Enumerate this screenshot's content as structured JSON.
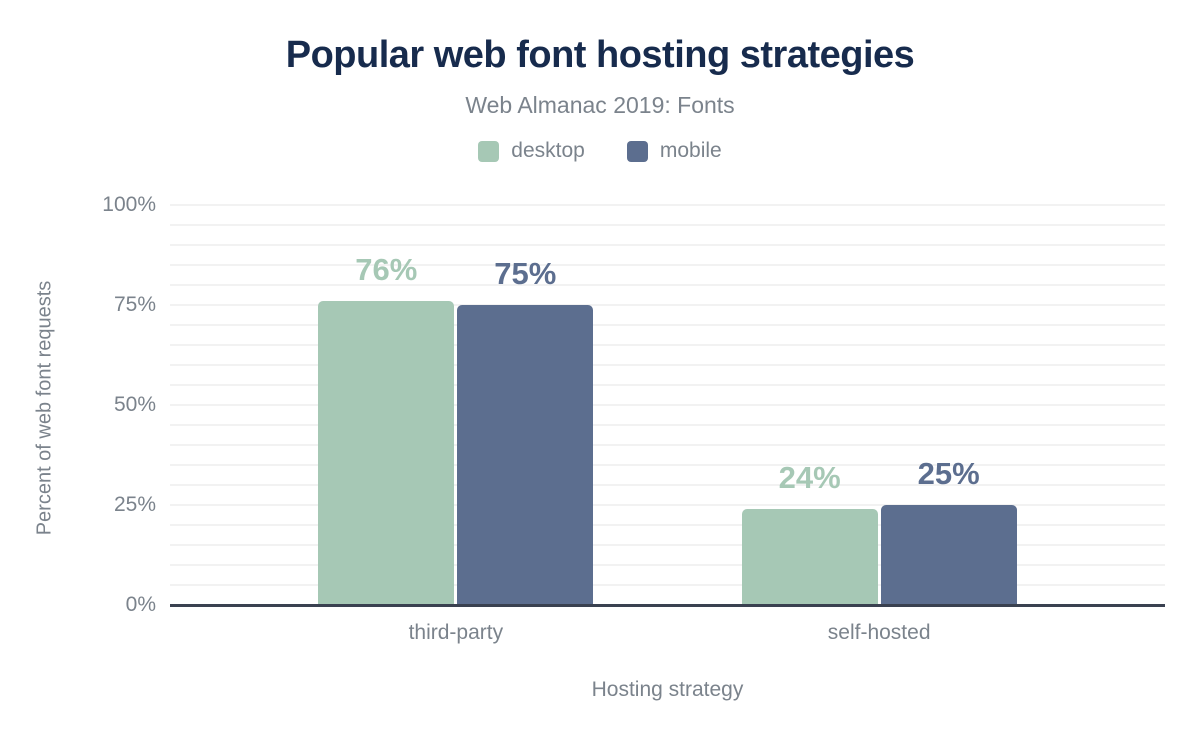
{
  "chart_data": {
    "type": "bar",
    "title": "Popular web font hosting strategies",
    "subtitle": "Web Almanac 2019: Fonts",
    "xlabel": "Hosting strategy",
    "ylabel": "Percent of web font requests",
    "categories": [
      "third-party",
      "self-hosted"
    ],
    "series": [
      {
        "name": "desktop",
        "color": "#a6c8b5",
        "values": [
          76,
          24
        ]
      },
      {
        "name": "mobile",
        "color": "#5c6e8f",
        "values": [
          75,
          25
        ]
      }
    ],
    "value_labels": [
      [
        "76%",
        "24%"
      ],
      [
        "75%",
        "25%"
      ]
    ],
    "ylim": [
      0,
      100
    ],
    "yticks": [
      0,
      25,
      50,
      75,
      100
    ],
    "ytick_labels": [
      "0%",
      "25%",
      "50%",
      "75%",
      "100%"
    ],
    "minor_grid_step": 5,
    "grid": "on",
    "legend_position": "top",
    "colors": {
      "title": "#172b4d",
      "muted_text": "#7b838c",
      "axis_line": "#3a4150",
      "gridline": "#f2f2f2",
      "background": "#ffffff"
    }
  }
}
